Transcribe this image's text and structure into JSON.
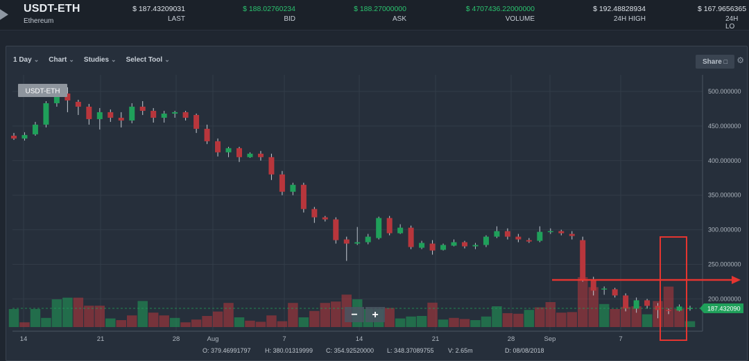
{
  "header": {
    "pair": "USDT-ETH",
    "coin": "Ethereum",
    "stats": [
      {
        "value": "$ 187.43209031",
        "label": "LAST",
        "color": "#dfe4ea"
      },
      {
        "value": "$ 188.02760234",
        "label": "BID",
        "color": "#2bc36f"
      },
      {
        "value": "$ 188.27000000",
        "label": "ASK",
        "color": "#2bc36f"
      },
      {
        "value": "$ 4707436.22000000",
        "label": "VOLUME",
        "color": "#2bc36f"
      },
      {
        "value": "$ 192.48828934",
        "label": "24H HIGH",
        "color": "#dfe4ea"
      },
      {
        "value": "$ 167.9656365",
        "label": "24H LO",
        "color": "#dfe4ea"
      }
    ]
  },
  "toolbar": {
    "interval": "1 Day",
    "chart": "Chart",
    "studies": "Studies",
    "select_tool": "Select Tool",
    "share": "Share"
  },
  "chart_data": {
    "type": "candlestick",
    "title": "USDT-ETH",
    "series_label": "USDT-ETH",
    "y_ticks": [
      "500.000000",
      "450.000000",
      "400.000000",
      "350.000000",
      "300.000000",
      "250.000000",
      "200.000000"
    ],
    "ylim": [
      140,
      520
    ],
    "x_ticks": [
      "14",
      "21",
      "28",
      "Aug",
      "7",
      "14",
      "21",
      "28",
      "Sep",
      "7"
    ],
    "last_price_label": "187.432090",
    "last_price": 187.43,
    "candles": [
      [
        436,
        432,
        440,
        430
      ],
      [
        432,
        437,
        441,
        429
      ],
      [
        438,
        452,
        456,
        436
      ],
      [
        452,
        483,
        486,
        448
      ],
      [
        483,
        498,
        510,
        478
      ],
      [
        497,
        487,
        506,
        470
      ],
      [
        485,
        478,
        488,
        466
      ],
      [
        478,
        460,
        482,
        452
      ],
      [
        460,
        470,
        476,
        445
      ],
      [
        470,
        462,
        474,
        456
      ],
      [
        462,
        458,
        470,
        448
      ],
      [
        458,
        478,
        483,
        454
      ],
      [
        478,
        472,
        486,
        466
      ],
      [
        472,
        462,
        476,
        455
      ],
      [
        462,
        468,
        472,
        455
      ],
      [
        468,
        470,
        472,
        462
      ],
      [
        470,
        462,
        472,
        458
      ],
      [
        466,
        446,
        468,
        440
      ],
      [
        446,
        428,
        452,
        424
      ],
      [
        428,
        412,
        432,
        406
      ],
      [
        412,
        418,
        420,
        405
      ],
      [
        418,
        405,
        420,
        398
      ],
      [
        405,
        410,
        412,
        404
      ],
      [
        410,
        405,
        414,
        400
      ],
      [
        405,
        380,
        410,
        372
      ],
      [
        380,
        355,
        385,
        350
      ],
      [
        355,
        365,
        368,
        350
      ],
      [
        365,
        330,
        368,
        325
      ],
      [
        330,
        318,
        333,
        310
      ],
      [
        318,
        315,
        320,
        312
      ],
      [
        315,
        285,
        318,
        280
      ],
      [
        286,
        280,
        290,
        255
      ],
      [
        280,
        282,
        304,
        278
      ],
      [
        282,
        290,
        294,
        279
      ],
      [
        288,
        317,
        319,
        286
      ],
      [
        317,
        295,
        320,
        292
      ],
      [
        295,
        303,
        308,
        294
      ],
      [
        303,
        275,
        306,
        272
      ],
      [
        274,
        281,
        284,
        272
      ],
      [
        280,
        270,
        285,
        264
      ],
      [
        271,
        278,
        280,
        270
      ],
      [
        277,
        282,
        286,
        276
      ],
      [
        282,
        276,
        284,
        273
      ],
      [
        276,
        278,
        281,
        272
      ],
      [
        278,
        290,
        292,
        275
      ],
      [
        290,
        298,
        305,
        288
      ],
      [
        298,
        290,
        302,
        286
      ],
      [
        290,
        286,
        294,
        282
      ],
      [
        285,
        283,
        288,
        281
      ],
      [
        284,
        297,
        305,
        282
      ],
      [
        297,
        298,
        302,
        294
      ],
      [
        298,
        295,
        300,
        292
      ],
      [
        294,
        291,
        298,
        286
      ],
      [
        285,
        228,
        290,
        225
      ],
      [
        228,
        212,
        232,
        205
      ],
      [
        214,
        215,
        218,
        206
      ],
      [
        214,
        205,
        216,
        202
      ],
      [
        205,
        186,
        208,
        182
      ],
      [
        186,
        198,
        202,
        180
      ],
      [
        198,
        190,
        200,
        186
      ],
      [
        190,
        184,
        194,
        172
      ],
      [
        184,
        183,
        186,
        178
      ],
      [
        183,
        189,
        192,
        182
      ],
      [
        187,
        187,
        190,
        183
      ]
    ],
    "volumes": [
      [
        0.65,
        1
      ],
      [
        0.17,
        0
      ],
      [
        0.65,
        1
      ],
      [
        0.33,
        1
      ],
      [
        1.0,
        1
      ],
      [
        1.06,
        1
      ],
      [
        1.06,
        0
      ],
      [
        0.77,
        0
      ],
      [
        0.77,
        0
      ],
      [
        0.31,
        1
      ],
      [
        0.25,
        0
      ],
      [
        0.42,
        0
      ],
      [
        0.94,
        1
      ],
      [
        0.52,
        0
      ],
      [
        0.42,
        0
      ],
      [
        0.33,
        1
      ],
      [
        0.17,
        0
      ],
      [
        0.27,
        0
      ],
      [
        0.4,
        0
      ],
      [
        0.56,
        0
      ],
      [
        0.87,
        0
      ],
      [
        0.35,
        1
      ],
      [
        0.23,
        0
      ],
      [
        0.19,
        0
      ],
      [
        0.42,
        0
      ],
      [
        0.21,
        0
      ],
      [
        0.87,
        0
      ],
      [
        0.35,
        1
      ],
      [
        0.58,
        0
      ],
      [
        0.87,
        0
      ],
      [
        0.92,
        0
      ],
      [
        1.17,
        0
      ],
      [
        1.0,
        1
      ],
      [
        0.65,
        1
      ],
      [
        0.65,
        1
      ],
      [
        0.69,
        0
      ],
      [
        0.31,
        1
      ],
      [
        0.38,
        1
      ],
      [
        0.4,
        1
      ],
      [
        0.88,
        0
      ],
      [
        0.27,
        1
      ],
      [
        0.33,
        0
      ],
      [
        0.29,
        0
      ],
      [
        0.25,
        1
      ],
      [
        0.38,
        1
      ],
      [
        0.75,
        1
      ],
      [
        0.5,
        0
      ],
      [
        0.48,
        0
      ],
      [
        0.62,
        1
      ],
      [
        0.71,
        0
      ],
      [
        0.9,
        0
      ],
      [
        0.52,
        0
      ],
      [
        0.54,
        0
      ],
      [
        1.8,
        0
      ],
      [
        1.44,
        0
      ],
      [
        0.83,
        1
      ],
      [
        0.65,
        0
      ],
      [
        0.73,
        0
      ],
      [
        0.75,
        0
      ],
      [
        0.46,
        1
      ],
      [
        0.94,
        0
      ],
      [
        1.46,
        0
      ],
      [
        0.65,
        0
      ],
      [
        0.21,
        1
      ]
    ],
    "ohlc_readout": {
      "o": "O:  379.46991797",
      "h": "H:  380.01319999",
      "c": "C:  354.92520000",
      "l": "L:  348.37089755",
      "v": "V:     2.65m",
      "d": "D:    08/08/2018"
    },
    "zoom_minus": "−",
    "zoom_plus": "+"
  },
  "colors": {
    "up": "#1fa05a",
    "down": "#b8363c",
    "highlight": "#e53530",
    "grid": "#323c48"
  }
}
